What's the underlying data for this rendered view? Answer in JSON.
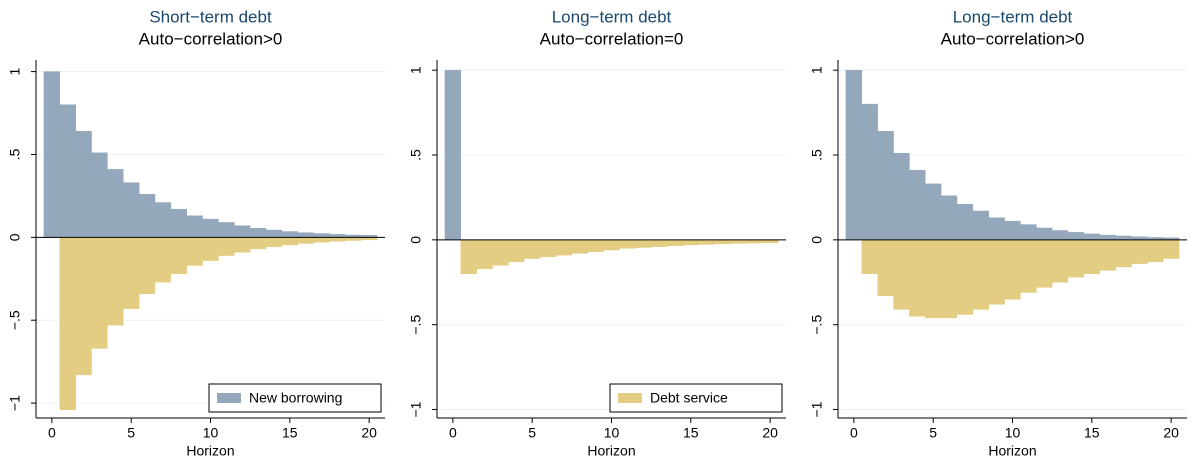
{
  "chart_data": [
    {
      "type": "bar",
      "title": "Short−term debt",
      "subtitle": "Auto−correlation>0",
      "x_label": "Horizon",
      "x": [
        0,
        1,
        2,
        3,
        4,
        5,
        6,
        7,
        8,
        9,
        10,
        11,
        12,
        13,
        14,
        15,
        16,
        17,
        18,
        19,
        20
      ],
      "series": [
        {
          "name": "New borrowing",
          "color": "#94a7bb",
          "values": [
            1,
            0.8,
            0.64,
            0.51,
            0.41,
            0.33,
            0.26,
            0.21,
            0.17,
            0.13,
            0.11,
            0.09,
            0.07,
            0.055,
            0.044,
            0.035,
            0.028,
            0.023,
            0.018,
            0.014,
            0.012
          ]
        },
        {
          "color": "#e3cd82",
          "values": [
            0,
            -1.04,
            -0.83,
            -0.67,
            -0.53,
            -0.43,
            -0.34,
            -0.27,
            -0.22,
            -0.17,
            -0.14,
            -0.11,
            -0.09,
            -0.07,
            -0.057,
            -0.046,
            -0.037,
            -0.029,
            -0.023,
            -0.019,
            -0.015
          ]
        }
      ],
      "xlim": [
        -1,
        21
      ],
      "xticks": [
        0,
        5,
        10,
        15,
        20
      ],
      "ylim": [
        -1.09,
        1.07
      ],
      "yticks": [
        {
          "value": -1,
          "label": "−1"
        },
        {
          "value": -0.5,
          "label": "−.5"
        },
        0,
        {
          "value": 0.5,
          "label": ".5"
        },
        1
      ],
      "grid": true,
      "legend": "lower right"
    },
    {
      "type": "bar",
      "title": "Long−term debt",
      "subtitle": "Auto−correlation=0",
      "x_label": "Horizon",
      "x": [
        0,
        1,
        2,
        3,
        4,
        5,
        6,
        7,
        8,
        9,
        10,
        11,
        12,
        13,
        14,
        15,
        16,
        17,
        18,
        19,
        20
      ],
      "series": [
        {
          "color": "#94a7bb",
          "values": [
            1,
            0,
            0,
            0,
            0,
            0,
            0,
            0,
            0,
            0,
            0,
            0,
            0,
            0,
            0,
            0,
            0,
            0,
            0,
            0,
            0
          ]
        },
        {
          "name": "Debt service",
          "color": "#e3cd82",
          "values": [
            0,
            -0.2,
            -0.17,
            -0.15,
            -0.13,
            -0.11,
            -0.1,
            -0.09,
            -0.08,
            -0.07,
            -0.06,
            -0.05,
            -0.045,
            -0.04,
            -0.035,
            -0.03,
            -0.027,
            -0.024,
            -0.021,
            -0.019,
            -0.017
          ]
        }
      ],
      "xlim": [
        -1,
        21
      ],
      "xticks": [
        0,
        5,
        10,
        15,
        20
      ],
      "ylim": [
        -1.05,
        1.06
      ],
      "yticks": [
        {
          "value": -1,
          "label": "−1"
        },
        {
          "value": -0.5,
          "label": "−.5"
        },
        0,
        {
          "value": 0.5,
          "label": ".5"
        },
        1
      ],
      "grid": true,
      "legend": "lower right"
    },
    {
      "type": "bar",
      "title": "Long−term debt",
      "subtitle": "Auto−correlation>0",
      "x_label": "Horizon",
      "x": [
        0,
        1,
        2,
        3,
        4,
        5,
        6,
        7,
        8,
        9,
        10,
        11,
        12,
        13,
        14,
        15,
        16,
        17,
        18,
        19,
        20
      ],
      "series": [
        {
          "color": "#94a7bb",
          "values": [
            1,
            0.8,
            0.64,
            0.51,
            0.41,
            0.33,
            0.26,
            0.21,
            0.17,
            0.13,
            0.11,
            0.09,
            0.07,
            0.055,
            0.044,
            0.035,
            0.028,
            0.023,
            0.018,
            0.014,
            0.012
          ]
        },
        {
          "color": "#e3cd82",
          "values": [
            0,
            -0.2,
            -0.33,
            -0.41,
            -0.45,
            -0.46,
            -0.46,
            -0.44,
            -0.41,
            -0.38,
            -0.35,
            -0.31,
            -0.28,
            -0.25,
            -0.22,
            -0.2,
            -0.18,
            -0.16,
            -0.14,
            -0.13,
            -0.11
          ]
        }
      ],
      "xlim": [
        -1,
        21
      ],
      "xticks": [
        0,
        5,
        10,
        15,
        20
      ],
      "ylim": [
        -1.05,
        1.06
      ],
      "yticks": [
        {
          "value": -1,
          "label": "−1"
        },
        {
          "value": -0.5,
          "label": "−.5"
        },
        0,
        {
          "value": 0.5,
          "label": ".5"
        },
        1
      ],
      "grid": true
    }
  ]
}
